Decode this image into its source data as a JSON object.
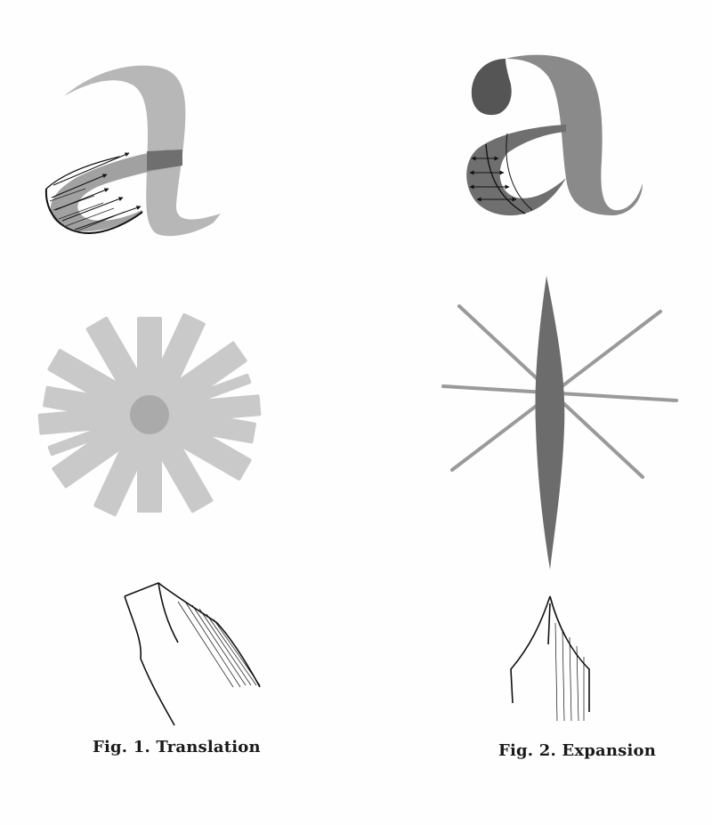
{
  "figures": [
    {
      "caption": "Fig. 1. Translation",
      "letter": "a",
      "technique": "translation",
      "tool": "broad-nib-pen",
      "ink_color": "#a9a9a9",
      "dark_color": "#6f6f6f"
    },
    {
      "caption": "Fig. 2. Expansion",
      "letter": "a",
      "technique": "expansion",
      "tool": "pointed-pen",
      "ink_color": "#8a8a8a",
      "dark_color": "#555555"
    }
  ]
}
